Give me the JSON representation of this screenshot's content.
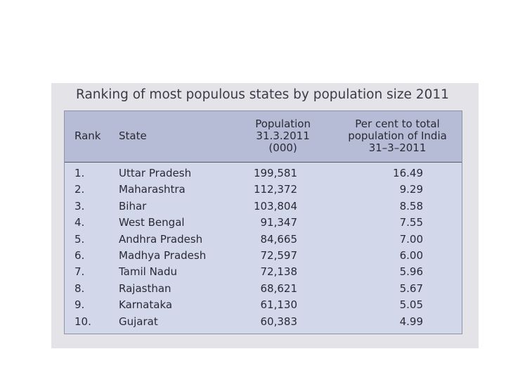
{
  "title": "Ranking of most populous states by population size 2011",
  "table": {
    "header": [
      [
        "Rank"
      ],
      [
        "State"
      ],
      [
        "Population",
        "31.3.2011",
        "(000)"
      ],
      [
        "Per cent to total",
        "population of India",
        "31–3–2011"
      ]
    ],
    "rows": [
      [
        "1.",
        "Uttar Pradesh",
        "199,581",
        "16.49"
      ],
      [
        "2.",
        "Maharashtra",
        "112,372",
        "9.29"
      ],
      [
        "3.",
        "Bihar",
        "103,804",
        "8.58"
      ],
      [
        "4.",
        "West Bengal",
        "91,347",
        "7.55"
      ],
      [
        "5.",
        "Andhra Pradesh",
        "84,665",
        "7.00"
      ],
      [
        "6.",
        "Madhya Pradesh",
        "72,597",
        "6.00"
      ],
      [
        "7.",
        "Tamil Nadu",
        "72,138",
        "5.96"
      ],
      [
        "8.",
        "Rajasthan",
        "68,621",
        "5.67"
      ],
      [
        "9.",
        "Karnataka",
        "61,130",
        "5.05"
      ],
      [
        "10.",
        "Gujarat",
        "60,383",
        "4.99"
      ]
    ]
  }
}
